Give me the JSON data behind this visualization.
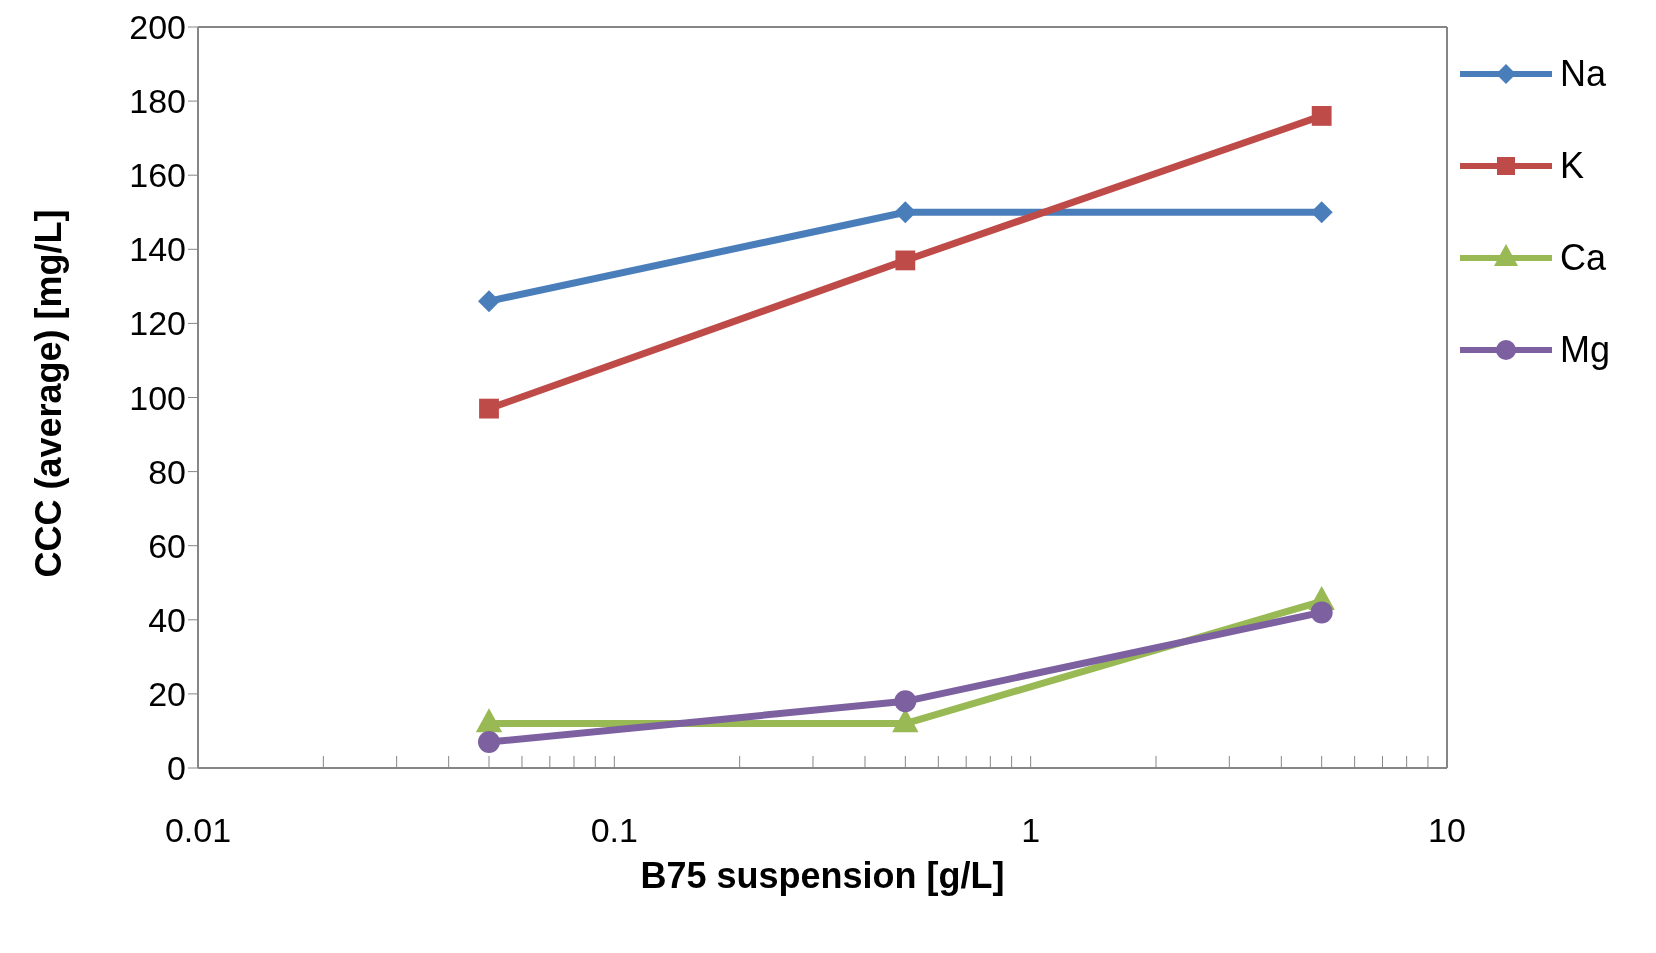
{
  "chart_data": {
    "type": "line",
    "xlabel": "B75 suspension  [g/L]",
    "ylabel": "CCC (average)  [mg/L]",
    "log": "x",
    "x": [
      0.05,
      0.5,
      5
    ],
    "series": [
      {
        "name": "Na",
        "color": "#4a7ebb",
        "values": [
          126,
          150,
          150
        ],
        "marker": "diamond"
      },
      {
        "name": "K",
        "color": "#be4b48",
        "values": [
          97,
          137,
          176
        ],
        "marker": "square"
      },
      {
        "name": "Ca",
        "color": "#98b954",
        "values": [
          12,
          12,
          45
        ],
        "marker": "triangle"
      },
      {
        "name": "Mg",
        "color": "#7d60a0",
        "values": [
          7,
          18,
          42
        ],
        "marker": "circle"
      }
    ],
    "xlim": [
      0.01,
      10
    ],
    "xticks": [
      0.01,
      {
        "value": 0.02,
        "label": null
      },
      {
        "value": 0.03,
        "label": null
      },
      {
        "value": 0.04,
        "label": null
      },
      {
        "value": 0.05,
        "label": null
      },
      {
        "value": 0.06,
        "label": null
      },
      {
        "value": 0.07,
        "label": null
      },
      {
        "value": 0.08,
        "label": null
      },
      {
        "value": 0.09,
        "label": null
      },
      0.1,
      {
        "value": 0.2,
        "label": null
      },
      {
        "value": 0.3,
        "label": null
      },
      {
        "value": 0.4,
        "label": null
      },
      {
        "value": 0.5,
        "label": null
      },
      {
        "value": 0.6,
        "label": null
      },
      {
        "value": 0.7,
        "label": null
      },
      {
        "value": 0.8,
        "label": null
      },
      {
        "value": 0.9,
        "label": null
      },
      1,
      {
        "value": 2,
        "label": null
      },
      {
        "value": 3,
        "label": null
      },
      {
        "value": 4,
        "label": null
      },
      {
        "value": 5,
        "label": null
      },
      {
        "value": 6,
        "label": null
      },
      {
        "value": 7,
        "label": null
      },
      {
        "value": 8,
        "label": null
      },
      {
        "value": 9,
        "label": null
      },
      10
    ],
    "ylim": [
      0,
      200
    ],
    "yticks": [
      0,
      20,
      40,
      60,
      80,
      100,
      120,
      140,
      160,
      180,
      200
    ],
    "grid": false,
    "legend": "right",
    "line_style": "solid"
  }
}
